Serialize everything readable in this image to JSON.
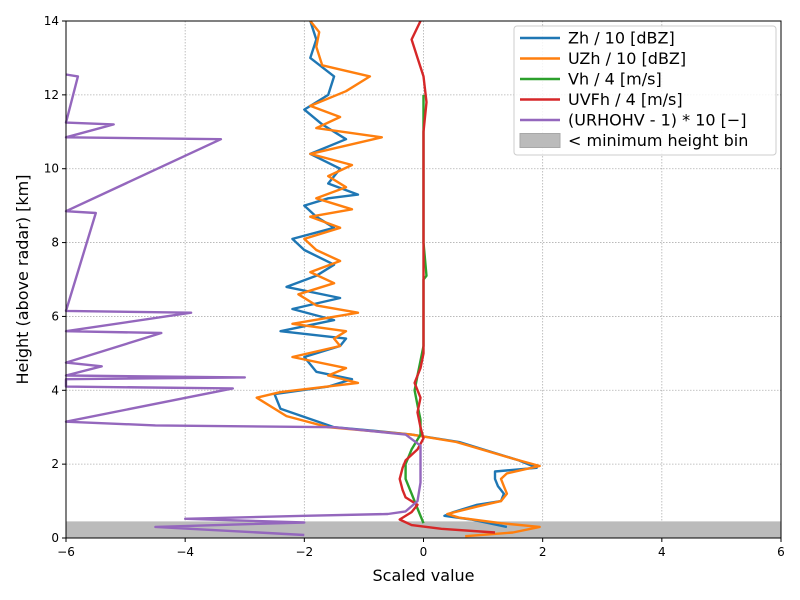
{
  "chart_data": {
    "type": "line",
    "xlabel": "Scaled value",
    "ylabel": "Height (above radar) [km]",
    "xlim": [
      -6,
      6
    ],
    "ylim": [
      0,
      14
    ],
    "x_ticks": [
      -6,
      -4,
      -2,
      0,
      2,
      4,
      6
    ],
    "y_ticks": [
      0,
      2,
      4,
      6,
      8,
      10,
      12,
      14
    ],
    "x_tick_labels": [
      "−6",
      "−4",
      "−2",
      "0",
      "2",
      "4",
      "6"
    ],
    "y_tick_labels": [
      "0",
      "2",
      "4",
      "6",
      "8",
      "10",
      "12",
      "14"
    ],
    "grid": true,
    "legend_position": "top-right",
    "shaded_band": {
      "label": "< minimum height bin",
      "y_range": [
        0,
        0.45
      ],
      "color": "#bbbbbb"
    },
    "series": [
      {
        "name": "Zh / 10 [dBZ]",
        "color": "#1f77b4",
        "points": [
          [
            1.4,
            0.3
          ],
          [
            0.8,
            0.5
          ],
          [
            0.35,
            0.6
          ],
          [
            0.5,
            0.7
          ],
          [
            0.9,
            0.9
          ],
          [
            1.3,
            1.0
          ],
          [
            1.35,
            1.2
          ],
          [
            1.25,
            1.4
          ],
          [
            1.2,
            1.6
          ],
          [
            1.2,
            1.8
          ],
          [
            1.9,
            1.9
          ],
          [
            1.6,
            2.1
          ],
          [
            0.6,
            2.6
          ],
          [
            -0.2,
            2.8
          ],
          [
            -0.8,
            2.9
          ],
          [
            -1.5,
            3.0
          ],
          [
            -2.4,
            3.5
          ],
          [
            -2.5,
            3.9
          ],
          [
            -1.6,
            4.1
          ],
          [
            -1.2,
            4.3
          ],
          [
            -1.8,
            4.5
          ],
          [
            -2.0,
            4.9
          ],
          [
            -1.4,
            5.2
          ],
          [
            -1.3,
            5.4
          ],
          [
            -2.4,
            5.6
          ],
          [
            -1.5,
            5.9
          ],
          [
            -2.2,
            6.2
          ],
          [
            -1.4,
            6.5
          ],
          [
            -2.3,
            6.8
          ],
          [
            -1.8,
            7.1
          ],
          [
            -1.5,
            7.4
          ],
          [
            -2.0,
            7.8
          ],
          [
            -2.2,
            8.1
          ],
          [
            -1.5,
            8.4
          ],
          [
            -1.8,
            8.7
          ],
          [
            -2.0,
            9.0
          ],
          [
            -1.6,
            9.2
          ],
          [
            -1.1,
            9.3
          ],
          [
            -1.6,
            9.6
          ],
          [
            -1.4,
            10.0
          ],
          [
            -1.9,
            10.4
          ],
          [
            -1.3,
            10.8
          ],
          [
            -1.7,
            11.2
          ],
          [
            -2.0,
            11.6
          ],
          [
            -1.6,
            12.0
          ],
          [
            -1.5,
            12.5
          ],
          [
            -1.9,
            13.0
          ],
          [
            -1.8,
            13.5
          ],
          [
            -1.9,
            14.0
          ]
        ]
      },
      {
        "name": "UZh / 10 [dBZ]",
        "color": "#ff7f0e",
        "points": [
          [
            0.7,
            0.05
          ],
          [
            1.5,
            0.15
          ],
          [
            1.95,
            0.3
          ],
          [
            1.3,
            0.4
          ],
          [
            0.6,
            0.55
          ],
          [
            0.4,
            0.65
          ],
          [
            0.9,
            0.85
          ],
          [
            1.3,
            1.0
          ],
          [
            1.4,
            1.2
          ],
          [
            1.35,
            1.4
          ],
          [
            1.3,
            1.6
          ],
          [
            1.4,
            1.75
          ],
          [
            1.95,
            1.95
          ],
          [
            1.5,
            2.15
          ],
          [
            0.55,
            2.6
          ],
          [
            -0.2,
            2.8
          ],
          [
            -0.9,
            2.9
          ],
          [
            -1.6,
            3.0
          ],
          [
            -2.3,
            3.3
          ],
          [
            -2.8,
            3.8
          ],
          [
            -2.4,
            3.95
          ],
          [
            -1.1,
            4.2
          ],
          [
            -1.6,
            4.4
          ],
          [
            -1.3,
            4.6
          ],
          [
            -2.2,
            4.9
          ],
          [
            -1.4,
            5.2
          ],
          [
            -1.5,
            5.4
          ],
          [
            -1.3,
            5.6
          ],
          [
            -2.2,
            5.8
          ],
          [
            -1.1,
            6.1
          ],
          [
            -1.8,
            6.3
          ],
          [
            -2.1,
            6.6
          ],
          [
            -1.5,
            6.9
          ],
          [
            -1.9,
            7.2
          ],
          [
            -1.4,
            7.5
          ],
          [
            -1.8,
            7.8
          ],
          [
            -2.0,
            8.1
          ],
          [
            -1.4,
            8.4
          ],
          [
            -1.9,
            8.7
          ],
          [
            -1.2,
            8.9
          ],
          [
            -1.8,
            9.2
          ],
          [
            -1.3,
            9.5
          ],
          [
            -1.6,
            9.8
          ],
          [
            -1.2,
            10.1
          ],
          [
            -1.9,
            10.4
          ],
          [
            -0.7,
            10.85
          ],
          [
            -1.8,
            11.1
          ],
          [
            -1.4,
            11.4
          ],
          [
            -1.9,
            11.7
          ],
          [
            -1.3,
            12.1
          ],
          [
            -0.9,
            12.5
          ],
          [
            -1.7,
            12.8
          ],
          [
            -1.8,
            13.3
          ],
          [
            -1.75,
            13.7
          ],
          [
            -1.9,
            14.0
          ]
        ]
      },
      {
        "name": "Vh / 4 [m/s]",
        "color": "#2ca02c",
        "points": [
          [
            0.0,
            0.4
          ],
          [
            -0.1,
            0.8
          ],
          [
            -0.2,
            1.2
          ],
          [
            -0.3,
            1.6
          ],
          [
            -0.3,
            2.0
          ],
          [
            -0.2,
            2.4
          ],
          [
            -0.05,
            2.8
          ],
          [
            -0.05,
            3.2
          ],
          [
            -0.1,
            3.6
          ],
          [
            -0.15,
            4.0
          ],
          [
            -0.1,
            4.4
          ],
          [
            -0.05,
            4.8
          ],
          [
            0.0,
            5.2
          ],
          [
            0.0,
            6.0
          ],
          [
            0.0,
            7.0
          ],
          [
            0.05,
            7.1
          ],
          [
            0.0,
            8.0
          ],
          [
            0.0,
            9.0
          ],
          [
            0.0,
            10.0
          ],
          [
            0.0,
            11.0
          ],
          [
            0.0,
            12.0
          ]
        ]
      },
      {
        "name": "UVFh / 4 [m/s]",
        "color": "#d62728",
        "points": [
          [
            1.2,
            0.15
          ],
          [
            0.3,
            0.25
          ],
          [
            -0.2,
            0.35
          ],
          [
            -0.4,
            0.5
          ],
          [
            -0.2,
            0.7
          ],
          [
            -0.1,
            0.9
          ],
          [
            -0.3,
            1.1
          ],
          [
            -0.35,
            1.3
          ],
          [
            -0.4,
            1.6
          ],
          [
            -0.35,
            1.9
          ],
          [
            -0.3,
            2.1
          ],
          [
            -0.1,
            2.4
          ],
          [
            0.0,
            2.7
          ],
          [
            -0.05,
            3.0
          ],
          [
            -0.1,
            3.4
          ],
          [
            -0.05,
            3.8
          ],
          [
            -0.15,
            4.2
          ],
          [
            -0.05,
            4.6
          ],
          [
            0.0,
            5.0
          ],
          [
            0.0,
            6.0
          ],
          [
            0.0,
            7.0
          ],
          [
            0.0,
            8.0
          ],
          [
            0.0,
            9.0
          ],
          [
            0.0,
            10.0
          ],
          [
            0.0,
            11.0
          ],
          [
            0.05,
            11.8
          ],
          [
            0.0,
            12.5
          ],
          [
            -0.1,
            13.0
          ],
          [
            -0.2,
            13.5
          ],
          [
            -0.05,
            14.0
          ]
        ]
      },
      {
        "name": "(URHOHV - 1) * 10 [−]",
        "color": "#9467bd",
        "points": [
          [
            -2.0,
            0.08
          ],
          [
            -4.5,
            0.3
          ],
          [
            -2.0,
            0.42
          ],
          [
            -4.0,
            0.52
          ],
          [
            -2.0,
            0.6
          ],
          [
            -0.6,
            0.65
          ],
          [
            -0.3,
            0.72
          ],
          [
            -0.1,
            1.0
          ],
          [
            -0.05,
            1.5
          ],
          [
            -0.05,
            2.0
          ],
          [
            -0.05,
            2.5
          ],
          [
            -0.3,
            2.8
          ],
          [
            -1.5,
            3.0
          ],
          [
            -4.5,
            3.05
          ],
          [
            -6.0,
            3.15
          ],
          [
            -3.2,
            4.05
          ],
          [
            -6.0,
            4.1
          ],
          [
            -6.0,
            4.3
          ],
          [
            -3.0,
            4.35
          ],
          [
            -6.0,
            4.4
          ],
          [
            -5.4,
            4.65
          ],
          [
            -6.0,
            4.75
          ],
          [
            -4.4,
            5.55
          ],
          [
            -6.0,
            5.6
          ],
          [
            -3.9,
            6.1
          ],
          [
            -6.0,
            6.15
          ],
          [
            -5.5,
            8.8
          ],
          [
            -6.0,
            8.85
          ],
          [
            -3.4,
            10.8
          ],
          [
            -6.0,
            10.85
          ],
          [
            -5.2,
            11.2
          ],
          [
            -6.0,
            11.25
          ],
          [
            -5.8,
            12.5
          ],
          [
            -6.0,
            12.55
          ]
        ]
      }
    ]
  }
}
